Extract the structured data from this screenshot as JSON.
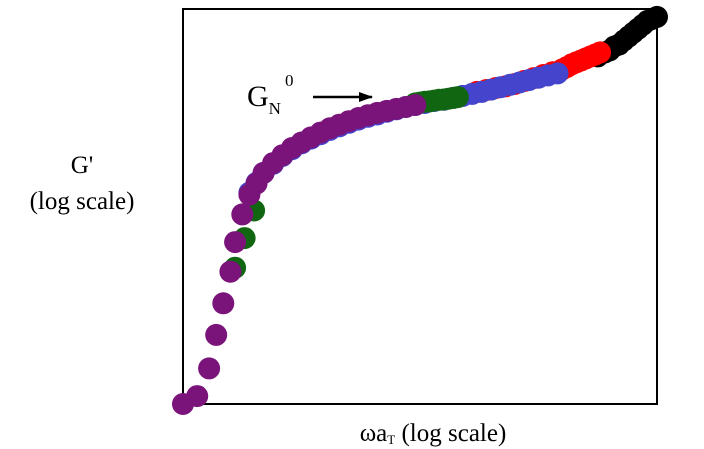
{
  "chart_data": {
    "type": "scatter",
    "title": "",
    "xlabel": {
      "omega": "ω",
      "a": "a",
      "sub": "T",
      "rest": " (log scale)"
    },
    "ylabel": {
      "line1": "G'",
      "line2": "(log scale)"
    },
    "xscale": "log",
    "yscale": "log",
    "xlim": [
      0,
      1
    ],
    "ylim": [
      0,
      1
    ],
    "grid": false,
    "legend": "none",
    "annotation": {
      "text": "G",
      "sub": "N",
      "sup": "0",
      "color": "#2222cc",
      "arrow": true,
      "points_to": [
        0.48,
        0.76
      ]
    },
    "series": [
      {
        "color": "#000000",
        "points": [
          [
            1.0,
            0.98
          ],
          [
            0.99,
            0.975
          ],
          [
            0.98,
            0.97
          ],
          [
            0.97,
            0.96
          ],
          [
            0.96,
            0.95
          ],
          [
            0.95,
            0.94
          ],
          [
            0.94,
            0.93
          ],
          [
            0.93,
            0.92
          ],
          [
            0.92,
            0.91
          ],
          [
            0.91,
            0.905
          ],
          [
            0.9,
            0.895
          ],
          [
            0.89,
            0.89
          ],
          [
            0.875,
            0.88
          ]
        ]
      },
      {
        "color": "#ff0000",
        "points": [
          [
            0.88,
            0.89
          ],
          [
            0.87,
            0.885
          ],
          [
            0.86,
            0.88
          ],
          [
            0.85,
            0.875
          ],
          [
            0.84,
            0.87
          ],
          [
            0.83,
            0.865
          ],
          [
            0.82,
            0.86
          ],
          [
            0.81,
            0.853
          ],
          [
            0.8,
            0.847
          ],
          [
            0.78,
            0.84
          ],
          [
            0.76,
            0.833
          ],
          [
            0.74,
            0.825
          ],
          [
            0.72,
            0.818
          ],
          [
            0.7,
            0.81
          ],
          [
            0.68,
            0.804
          ],
          [
            0.66,
            0.8
          ],
          [
            0.64,
            0.795
          ],
          [
            0.62,
            0.79
          ]
        ]
      },
      {
        "color": "#4444cc",
        "points": [
          [
            0.79,
            0.837
          ],
          [
            0.77,
            0.832
          ],
          [
            0.75,
            0.826
          ],
          [
            0.73,
            0.82
          ],
          [
            0.71,
            0.814
          ],
          [
            0.69,
            0.808
          ],
          [
            0.67,
            0.802
          ],
          [
            0.65,
            0.796
          ],
          [
            0.63,
            0.79
          ],
          [
            0.61,
            0.785
          ],
          [
            0.59,
            0.78
          ],
          [
            0.57,
            0.775
          ],
          [
            0.55,
            0.77
          ],
          [
            0.53,
            0.767
          ],
          [
            0.51,
            0.762
          ],
          [
            0.49,
            0.757
          ],
          [
            0.47,
            0.752
          ],
          [
            0.45,
            0.746
          ],
          [
            0.43,
            0.74
          ],
          [
            0.41,
            0.733
          ],
          [
            0.39,
            0.727
          ],
          [
            0.37,
            0.72
          ],
          [
            0.35,
            0.712
          ],
          [
            0.33,
            0.703
          ],
          [
            0.31,
            0.694
          ],
          [
            0.29,
            0.683
          ],
          [
            0.27,
            0.672
          ],
          [
            0.25,
            0.66
          ],
          [
            0.23,
            0.645
          ],
          [
            0.21,
            0.628
          ],
          [
            0.19,
            0.608
          ],
          [
            0.17,
            0.585
          ],
          [
            0.155,
            0.56
          ],
          [
            0.14,
            0.535
          ]
        ]
      },
      {
        "color": "#116611",
        "points": [
          [
            0.58,
            0.777
          ],
          [
            0.57,
            0.775
          ],
          [
            0.56,
            0.773
          ],
          [
            0.55,
            0.771
          ],
          [
            0.54,
            0.77
          ],
          [
            0.53,
            0.768
          ],
          [
            0.52,
            0.766
          ],
          [
            0.51,
            0.765
          ],
          [
            0.5,
            0.763
          ],
          [
            0.49,
            0.761
          ],
          [
            0.15,
            0.49
          ],
          [
            0.13,
            0.42
          ],
          [
            0.11,
            0.345
          ]
        ]
      },
      {
        "color": "#7a137a",
        "points": [
          [
            0.49,
            0.757
          ],
          [
            0.47,
            0.752
          ],
          [
            0.45,
            0.747
          ],
          [
            0.43,
            0.742
          ],
          [
            0.41,
            0.737
          ],
          [
            0.39,
            0.731
          ],
          [
            0.37,
            0.724
          ],
          [
            0.35,
            0.716
          ],
          [
            0.33,
            0.707
          ],
          [
            0.31,
            0.698
          ],
          [
            0.29,
            0.687
          ],
          [
            0.27,
            0.675
          ],
          [
            0.25,
            0.662
          ],
          [
            0.23,
            0.648
          ],
          [
            0.21,
            0.63
          ],
          [
            0.19,
            0.61
          ],
          [
            0.17,
            0.585
          ],
          [
            0.155,
            0.558
          ],
          [
            0.14,
            0.53
          ],
          [
            0.125,
            0.48
          ],
          [
            0.11,
            0.41
          ],
          [
            0.1,
            0.335
          ],
          [
            0.085,
            0.255
          ],
          [
            0.07,
            0.175
          ],
          [
            0.055,
            0.09
          ],
          [
            0.03,
            0.02
          ],
          [
            0.0,
            0.0
          ]
        ]
      }
    ]
  }
}
